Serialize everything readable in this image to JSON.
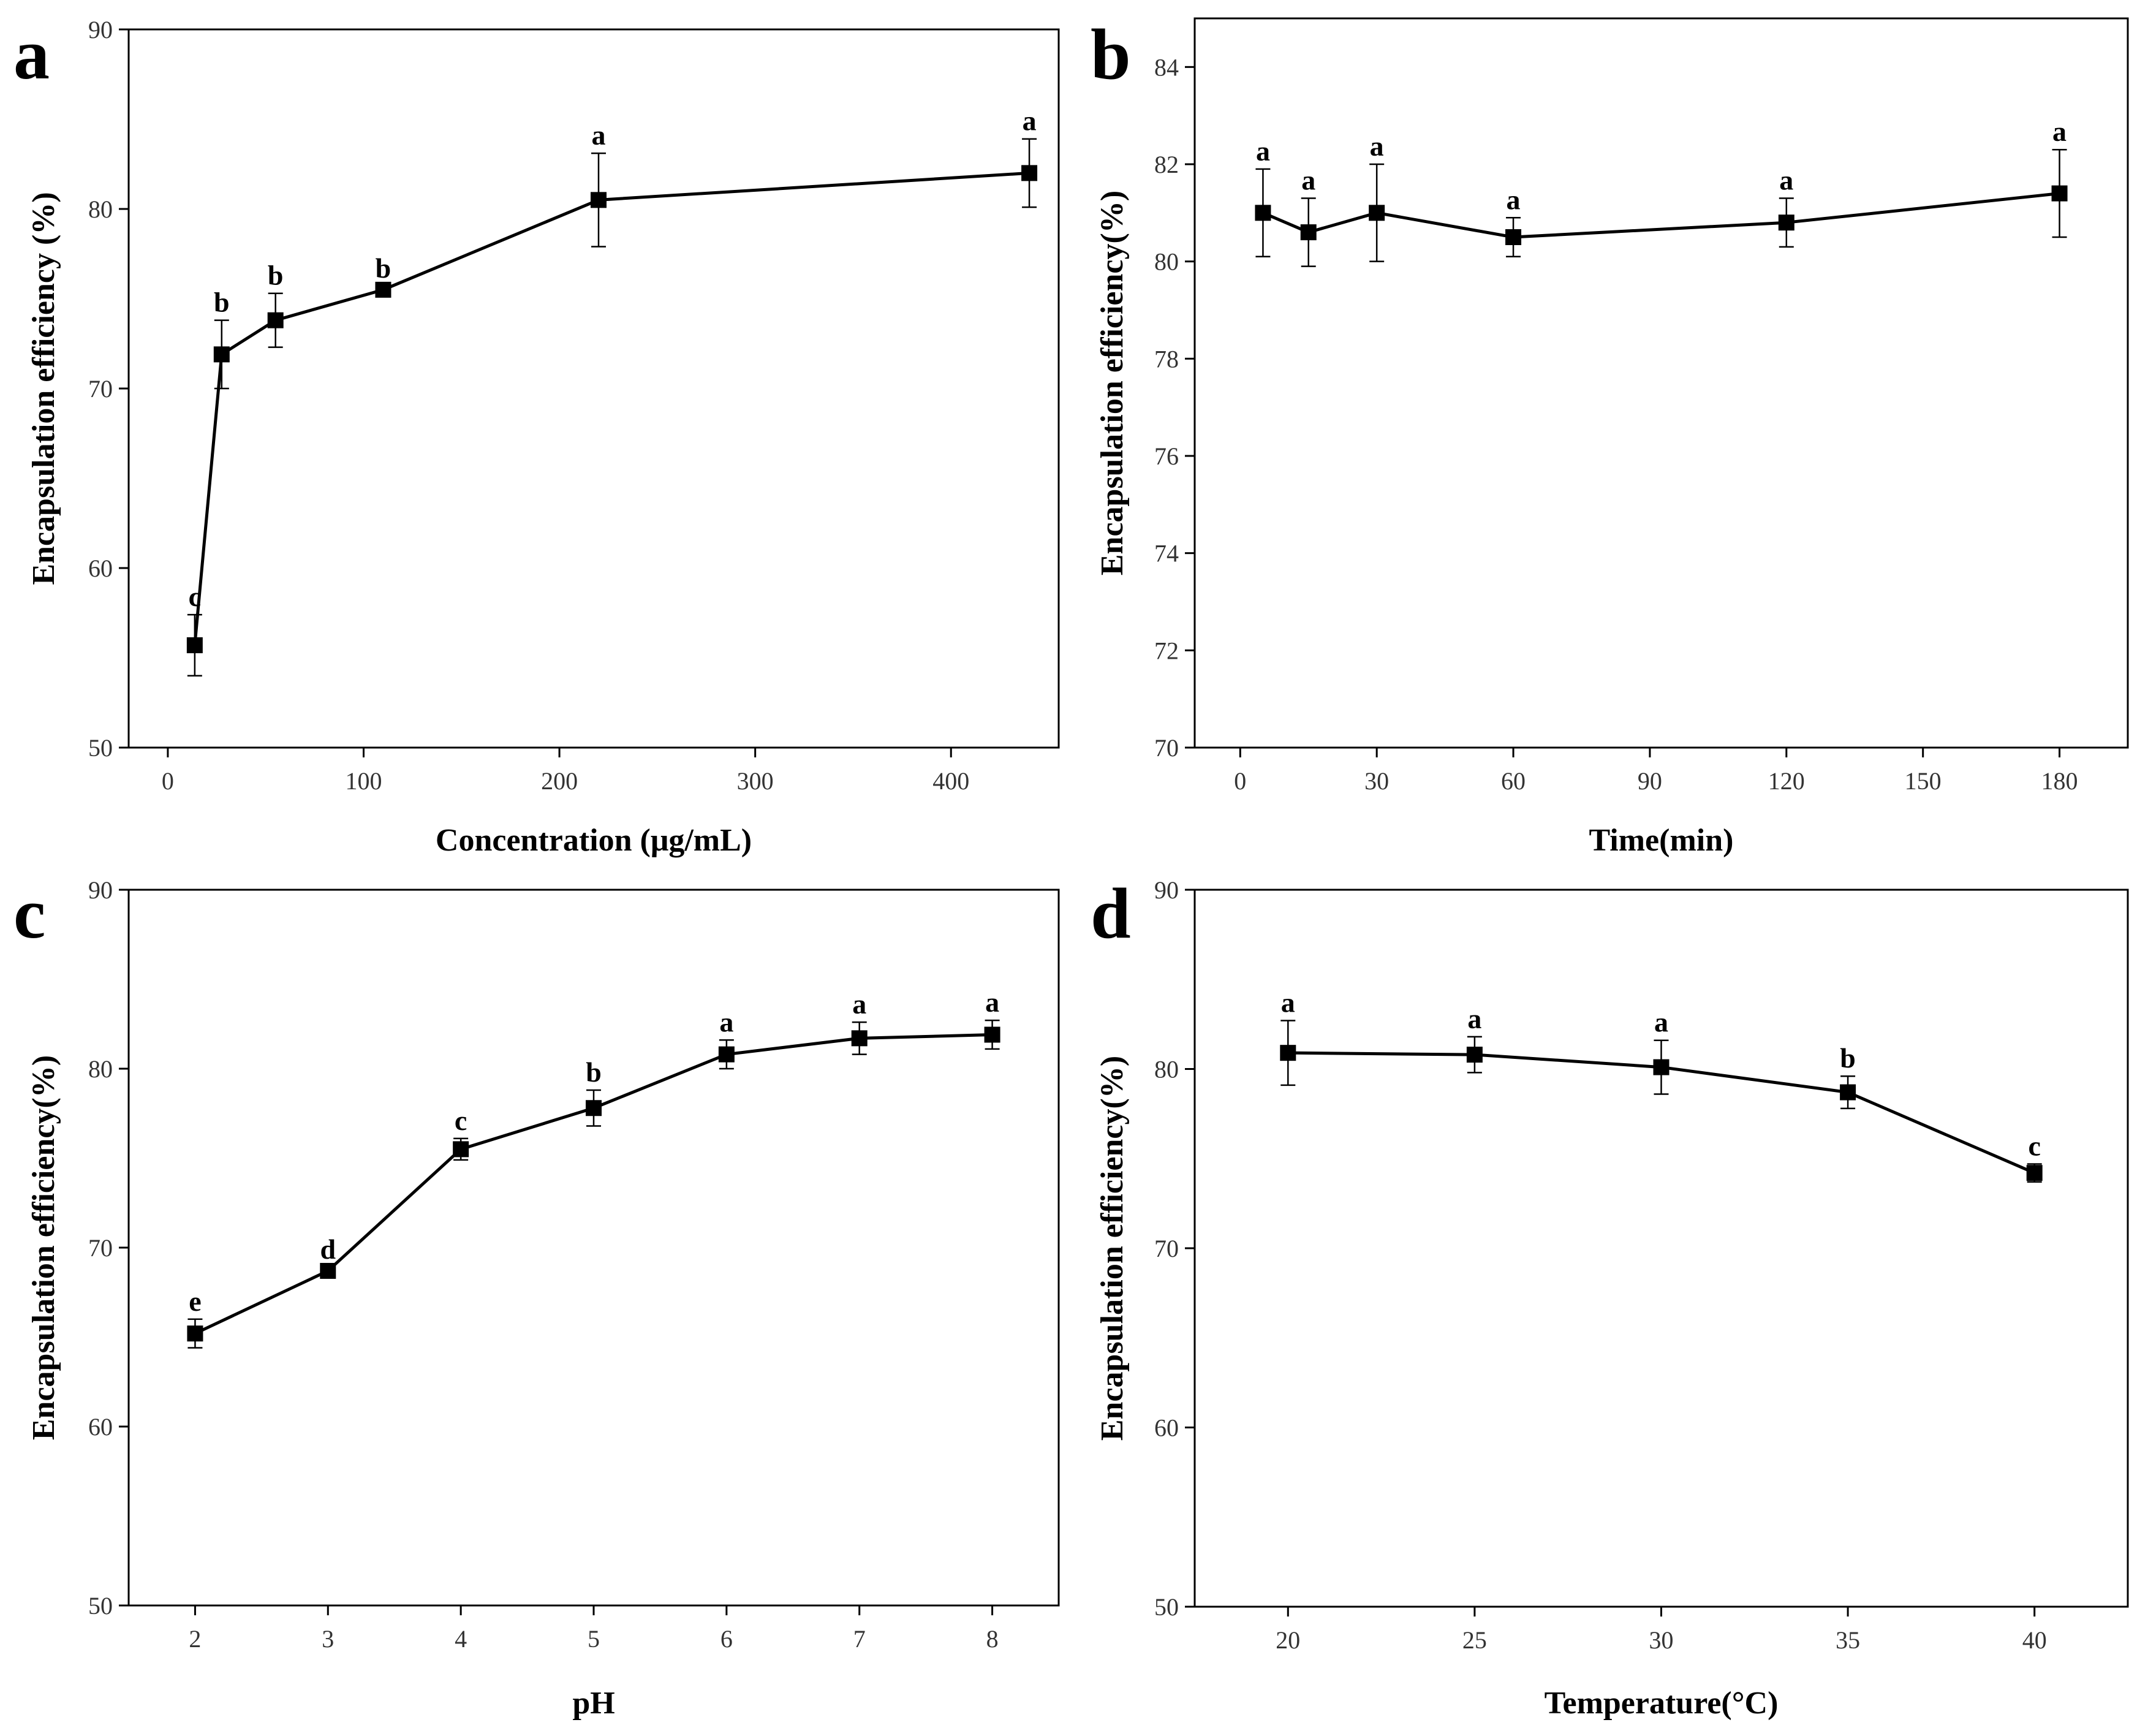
{
  "chart_data": [
    {
      "panel": "a",
      "type": "line",
      "xlabel": "Concentration (μg/mL)",
      "ylabel": "Encapsulation efficiency (%)",
      "xlim": [
        -20,
        455
      ],
      "ylim": [
        50,
        90
      ],
      "xticks": [
        0,
        100,
        200,
        300,
        400
      ],
      "yticks": [
        50,
        60,
        70,
        80,
        90
      ],
      "x": [
        13.75,
        27.5,
        55,
        110,
        220,
        440
      ],
      "y": [
        55.7,
        71.9,
        73.8,
        75.5,
        80.5,
        82.0
      ],
      "err": [
        1.7,
        1.9,
        1.5,
        0.2,
        2.6,
        1.9
      ],
      "sig": [
        "c",
        "b",
        "b",
        "b",
        "a",
        "a"
      ]
    },
    {
      "panel": "b",
      "type": "line",
      "xlabel": "Time(min)",
      "ylabel": "Encapsulation efficiency(%)",
      "xlim": [
        -10,
        195
      ],
      "ylim": [
        70,
        85
      ],
      "xticks": [
        0,
        30,
        60,
        90,
        120,
        150,
        180
      ],
      "yticks": [
        70,
        72,
        74,
        76,
        78,
        80,
        82,
        84
      ],
      "x": [
        5,
        15,
        30,
        60,
        120,
        180
      ],
      "y": [
        81.0,
        80.6,
        81.0,
        80.5,
        80.8,
        81.4
      ],
      "err": [
        0.9,
        0.7,
        1.0,
        0.4,
        0.5,
        0.9
      ],
      "sig": [
        "a",
        "a",
        "a",
        "a",
        "a",
        "a"
      ]
    },
    {
      "panel": "c",
      "type": "line",
      "xlabel": "pH",
      "ylabel": "Encapsulation efficiency(%)",
      "xlim": [
        1.5,
        8.5
      ],
      "ylim": [
        50,
        90
      ],
      "xticks": [
        2,
        3,
        4,
        5,
        6,
        7,
        8
      ],
      "yticks": [
        50,
        60,
        70,
        80,
        90
      ],
      "x": [
        2,
        3,
        4,
        5,
        6,
        7,
        8
      ],
      "y": [
        65.2,
        68.7,
        75.5,
        77.8,
        80.8,
        81.7,
        81.9
      ],
      "err": [
        0.8,
        0.2,
        0.6,
        1.0,
        0.8,
        0.9,
        0.8
      ],
      "sig": [
        "e",
        "d",
        "c",
        "b",
        "a",
        "a",
        "a"
      ]
    },
    {
      "panel": "d",
      "type": "line",
      "xlabel": "Temperature(°C)",
      "ylabel": "Encapsulation efficiency(%)",
      "xlim": [
        17.5,
        42.5
      ],
      "ylim": [
        50,
        90
      ],
      "xticks": [
        20,
        25,
        30,
        35,
        40
      ],
      "yticks": [
        50,
        60,
        70,
        80,
        90
      ],
      "x": [
        20,
        25,
        30,
        35,
        40
      ],
      "y": [
        80.9,
        80.8,
        80.1,
        78.7,
        74.2
      ],
      "err": [
        1.8,
        1.0,
        1.5,
        0.9,
        0.5
      ],
      "sig": [
        "a",
        "a",
        "a",
        "b",
        "c"
      ]
    }
  ]
}
